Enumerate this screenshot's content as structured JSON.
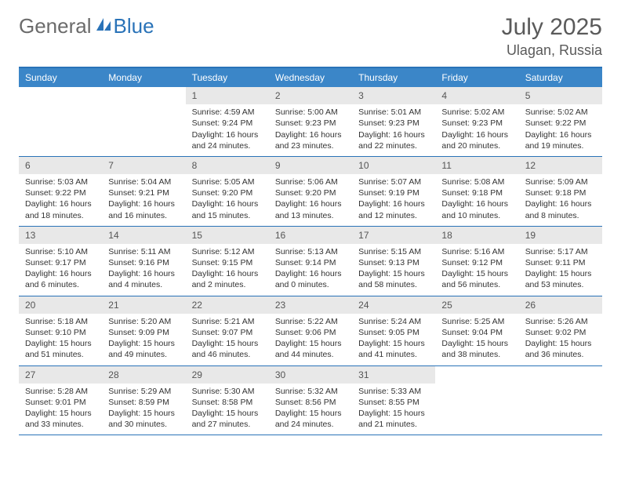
{
  "logo": {
    "general": "General",
    "blue": "Blue"
  },
  "title": "July 2025",
  "location": "Ulagan, Russia",
  "colors": {
    "header_bg": "#3b86c8",
    "border": "#2a73b8",
    "daynum_bg": "#e8e8e8",
    "text": "#333333",
    "logo_gray": "#6b6b6b",
    "logo_blue": "#2a73b8"
  },
  "weekdays": [
    "Sunday",
    "Monday",
    "Tuesday",
    "Wednesday",
    "Thursday",
    "Friday",
    "Saturday"
  ],
  "weeks": [
    [
      {
        "empty": true
      },
      {
        "empty": true
      },
      {
        "num": "1",
        "sunrise": "Sunrise: 4:59 AM",
        "sunset": "Sunset: 9:24 PM",
        "daylight": "Daylight: 16 hours and 24 minutes."
      },
      {
        "num": "2",
        "sunrise": "Sunrise: 5:00 AM",
        "sunset": "Sunset: 9:23 PM",
        "daylight": "Daylight: 16 hours and 23 minutes."
      },
      {
        "num": "3",
        "sunrise": "Sunrise: 5:01 AM",
        "sunset": "Sunset: 9:23 PM",
        "daylight": "Daylight: 16 hours and 22 minutes."
      },
      {
        "num": "4",
        "sunrise": "Sunrise: 5:02 AM",
        "sunset": "Sunset: 9:23 PM",
        "daylight": "Daylight: 16 hours and 20 minutes."
      },
      {
        "num": "5",
        "sunrise": "Sunrise: 5:02 AM",
        "sunset": "Sunset: 9:22 PM",
        "daylight": "Daylight: 16 hours and 19 minutes."
      }
    ],
    [
      {
        "num": "6",
        "sunrise": "Sunrise: 5:03 AM",
        "sunset": "Sunset: 9:22 PM",
        "daylight": "Daylight: 16 hours and 18 minutes."
      },
      {
        "num": "7",
        "sunrise": "Sunrise: 5:04 AM",
        "sunset": "Sunset: 9:21 PM",
        "daylight": "Daylight: 16 hours and 16 minutes."
      },
      {
        "num": "8",
        "sunrise": "Sunrise: 5:05 AM",
        "sunset": "Sunset: 9:20 PM",
        "daylight": "Daylight: 16 hours and 15 minutes."
      },
      {
        "num": "9",
        "sunrise": "Sunrise: 5:06 AM",
        "sunset": "Sunset: 9:20 PM",
        "daylight": "Daylight: 16 hours and 13 minutes."
      },
      {
        "num": "10",
        "sunrise": "Sunrise: 5:07 AM",
        "sunset": "Sunset: 9:19 PM",
        "daylight": "Daylight: 16 hours and 12 minutes."
      },
      {
        "num": "11",
        "sunrise": "Sunrise: 5:08 AM",
        "sunset": "Sunset: 9:18 PM",
        "daylight": "Daylight: 16 hours and 10 minutes."
      },
      {
        "num": "12",
        "sunrise": "Sunrise: 5:09 AM",
        "sunset": "Sunset: 9:18 PM",
        "daylight": "Daylight: 16 hours and 8 minutes."
      }
    ],
    [
      {
        "num": "13",
        "sunrise": "Sunrise: 5:10 AM",
        "sunset": "Sunset: 9:17 PM",
        "daylight": "Daylight: 16 hours and 6 minutes."
      },
      {
        "num": "14",
        "sunrise": "Sunrise: 5:11 AM",
        "sunset": "Sunset: 9:16 PM",
        "daylight": "Daylight: 16 hours and 4 minutes."
      },
      {
        "num": "15",
        "sunrise": "Sunrise: 5:12 AM",
        "sunset": "Sunset: 9:15 PM",
        "daylight": "Daylight: 16 hours and 2 minutes."
      },
      {
        "num": "16",
        "sunrise": "Sunrise: 5:13 AM",
        "sunset": "Sunset: 9:14 PM",
        "daylight": "Daylight: 16 hours and 0 minutes."
      },
      {
        "num": "17",
        "sunrise": "Sunrise: 5:15 AM",
        "sunset": "Sunset: 9:13 PM",
        "daylight": "Daylight: 15 hours and 58 minutes."
      },
      {
        "num": "18",
        "sunrise": "Sunrise: 5:16 AM",
        "sunset": "Sunset: 9:12 PM",
        "daylight": "Daylight: 15 hours and 56 minutes."
      },
      {
        "num": "19",
        "sunrise": "Sunrise: 5:17 AM",
        "sunset": "Sunset: 9:11 PM",
        "daylight": "Daylight: 15 hours and 53 minutes."
      }
    ],
    [
      {
        "num": "20",
        "sunrise": "Sunrise: 5:18 AM",
        "sunset": "Sunset: 9:10 PM",
        "daylight": "Daylight: 15 hours and 51 minutes."
      },
      {
        "num": "21",
        "sunrise": "Sunrise: 5:20 AM",
        "sunset": "Sunset: 9:09 PM",
        "daylight": "Daylight: 15 hours and 49 minutes."
      },
      {
        "num": "22",
        "sunrise": "Sunrise: 5:21 AM",
        "sunset": "Sunset: 9:07 PM",
        "daylight": "Daylight: 15 hours and 46 minutes."
      },
      {
        "num": "23",
        "sunrise": "Sunrise: 5:22 AM",
        "sunset": "Sunset: 9:06 PM",
        "daylight": "Daylight: 15 hours and 44 minutes."
      },
      {
        "num": "24",
        "sunrise": "Sunrise: 5:24 AM",
        "sunset": "Sunset: 9:05 PM",
        "daylight": "Daylight: 15 hours and 41 minutes."
      },
      {
        "num": "25",
        "sunrise": "Sunrise: 5:25 AM",
        "sunset": "Sunset: 9:04 PM",
        "daylight": "Daylight: 15 hours and 38 minutes."
      },
      {
        "num": "26",
        "sunrise": "Sunrise: 5:26 AM",
        "sunset": "Sunset: 9:02 PM",
        "daylight": "Daylight: 15 hours and 36 minutes."
      }
    ],
    [
      {
        "num": "27",
        "sunrise": "Sunrise: 5:28 AM",
        "sunset": "Sunset: 9:01 PM",
        "daylight": "Daylight: 15 hours and 33 minutes."
      },
      {
        "num": "28",
        "sunrise": "Sunrise: 5:29 AM",
        "sunset": "Sunset: 8:59 PM",
        "daylight": "Daylight: 15 hours and 30 minutes."
      },
      {
        "num": "29",
        "sunrise": "Sunrise: 5:30 AM",
        "sunset": "Sunset: 8:58 PM",
        "daylight": "Daylight: 15 hours and 27 minutes."
      },
      {
        "num": "30",
        "sunrise": "Sunrise: 5:32 AM",
        "sunset": "Sunset: 8:56 PM",
        "daylight": "Daylight: 15 hours and 24 minutes."
      },
      {
        "num": "31",
        "sunrise": "Sunrise: 5:33 AM",
        "sunset": "Sunset: 8:55 PM",
        "daylight": "Daylight: 15 hours and 21 minutes."
      },
      {
        "empty": true
      },
      {
        "empty": true
      }
    ]
  ]
}
